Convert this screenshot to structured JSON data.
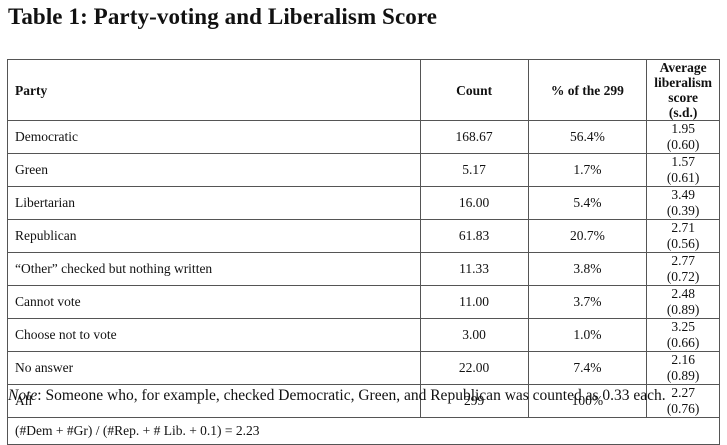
{
  "title": "Table 1: Party-voting and Liberalism Score",
  "table": {
    "headers": {
      "party": "Party",
      "count": "Count",
      "pct": "% of the 299",
      "lib_line1": "Average",
      "lib_line2": "liberalism",
      "lib_line3": "score (s.d.)"
    },
    "rows": [
      {
        "party": "Democratic",
        "count": "168.67",
        "pct": "56.4%",
        "lib": "1.95 (0.60)"
      },
      {
        "party": "Green",
        "count": "5.17",
        "pct": "1.7%",
        "lib": "1.57 (0.61)"
      },
      {
        "party": "Libertarian",
        "count": "16.00",
        "pct": "5.4%",
        "lib": "3.49 (0.39)"
      },
      {
        "party": "Republican",
        "count": "61.83",
        "pct": "20.7%",
        "lib": "2.71 (0.56)"
      },
      {
        "party": "“Other” checked but nothing written",
        "count": "11.33",
        "pct": "3.8%",
        "lib": "2.77 (0.72)"
      },
      {
        "party": "Cannot vote",
        "count": "11.00",
        "pct": "3.7%",
        "lib": "2.48 (0.89)"
      },
      {
        "party": "Choose not to vote",
        "count": "3.00",
        "pct": "1.0%",
        "lib": "3.25 (0.66)"
      },
      {
        "party": "No answer",
        "count": "22.00",
        "pct": "7.4%",
        "lib": "2.16 (0.89)"
      },
      {
        "party": "All",
        "count": "299",
        "pct": "100%",
        "lib": "2.27 (0.76)"
      }
    ],
    "formula": "(#Dem + #Gr) / (#Rep. + # Lib. + 0.1) = 2.23"
  },
  "note": {
    "label": "Note",
    "text": ": Someone who, for example, checked Democratic, Green, and Republican was counted as 0.33 each."
  }
}
